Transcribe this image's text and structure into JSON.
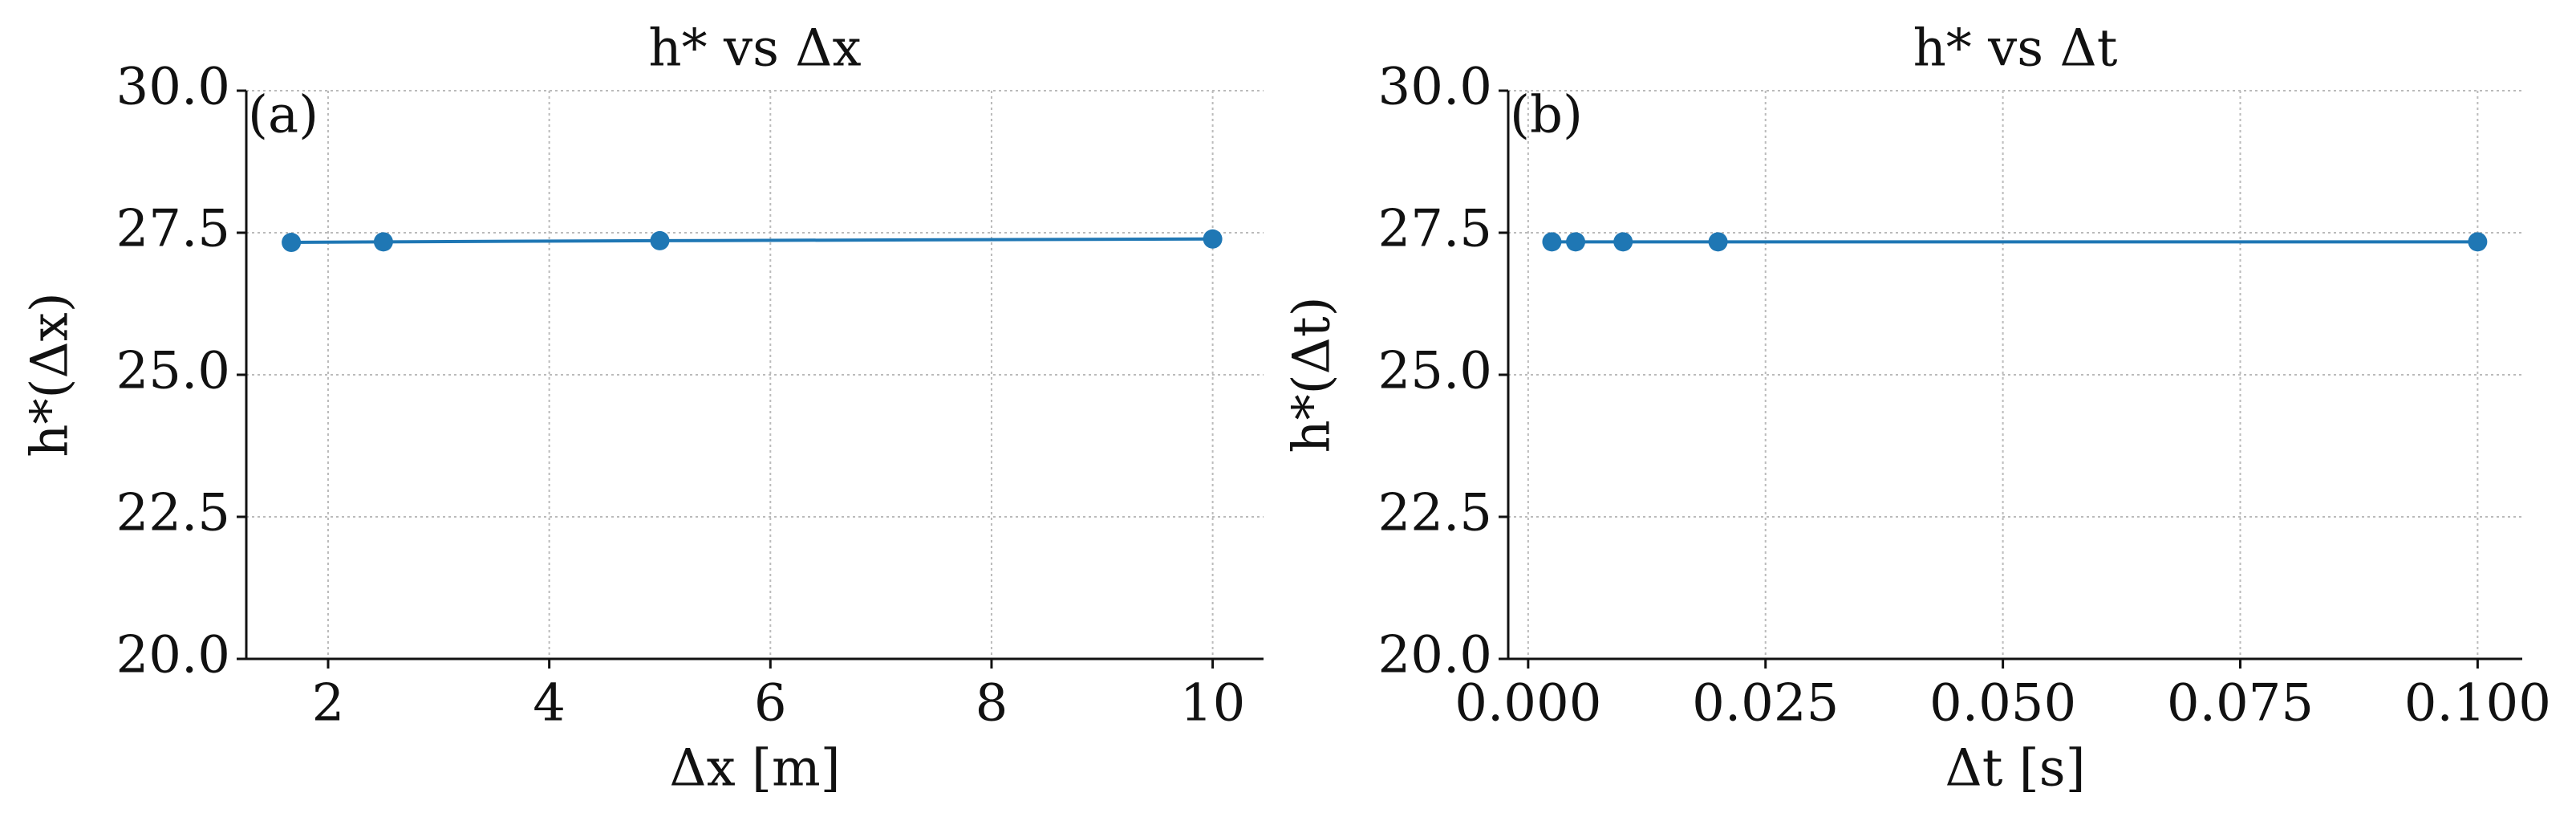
{
  "chart_data": [
    {
      "type": "line",
      "title": "h* vs Δx",
      "annotation": "(a)",
      "xlabel": "Δx [m]",
      "ylabel": "h*(Δx)",
      "x": [
        1.667,
        2.5,
        5,
        10
      ],
      "series": [
        {
          "name": "h*",
          "color": "#1f77b4",
          "values": [
            27.33,
            27.34,
            27.36,
            27.39
          ]
        }
      ],
      "xlim": [
        1.26,
        10.46
      ],
      "xticks": [
        2,
        4,
        6,
        8,
        10
      ],
      "ylim": [
        20,
        30
      ],
      "yticks": [
        {
          "value": 20,
          "label": "20.0"
        },
        22.5,
        {
          "value": 25,
          "label": "25.0"
        },
        27.5,
        {
          "value": 30,
          "label": "30.0"
        }
      ],
      "grid": true
    },
    {
      "type": "line",
      "title": "h* vs Δt",
      "annotation": "(b)",
      "xlabel": "Δt [s]",
      "ylabel": "h*(Δt)",
      "x": [
        0.0025,
        0.005,
        0.01,
        0.02,
        0.1
      ],
      "series": [
        {
          "name": "h*",
          "color": "#1f77b4",
          "values": [
            27.34,
            27.34,
            27.34,
            27.34,
            27.34
          ]
        }
      ],
      "xlim": [
        -0.0021,
        0.1047
      ],
      "xticks": [
        {
          "value": 0,
          "label": "0.000"
        },
        {
          "value": 0.025,
          "label": "0.025"
        },
        {
          "value": 0.05,
          "label": "0.050"
        },
        {
          "value": 0.075,
          "label": "0.075"
        },
        {
          "value": 0.1,
          "label": "0.100"
        }
      ],
      "ylim": [
        20,
        30
      ],
      "yticks": [
        {
          "value": 20,
          "label": "20.0"
        },
        22.5,
        {
          "value": 25,
          "label": "25.0"
        },
        27.5,
        {
          "value": 30,
          "label": "30.0"
        }
      ],
      "grid": true
    }
  ]
}
